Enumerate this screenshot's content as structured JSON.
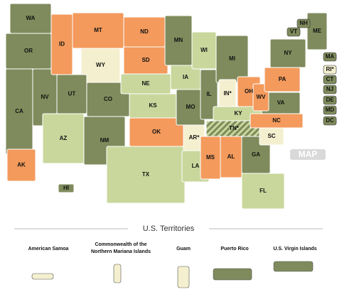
{
  "states": [
    {
      "label": "WA",
      "color": "#7f8b5c"
    },
    {
      "label": "OR",
      "color": "#7f8b5c"
    },
    {
      "label": "CA",
      "color": "#7f8b5c"
    },
    {
      "label": "NV",
      "color": "#7f8b5c"
    },
    {
      "label": "ID",
      "color": "#f39a5c"
    },
    {
      "label": "MT",
      "color": "#f39a5c"
    },
    {
      "label": "WY",
      "color": "#f4efcf"
    },
    {
      "label": "UT",
      "color": "#7f8b5c"
    },
    {
      "label": "CO",
      "color": "#7f8b5c"
    },
    {
      "label": "AZ",
      "color": "#c9d79c"
    },
    {
      "label": "NM",
      "color": "#7f8b5c"
    },
    {
      "label": "ND",
      "color": "#f39a5c"
    },
    {
      "label": "SD",
      "color": "#f39a5c"
    },
    {
      "label": "NE",
      "color": "#c9d79c"
    },
    {
      "label": "KS",
      "color": "#c9d79c"
    },
    {
      "label": "OK",
      "color": "#f39a5c"
    },
    {
      "label": "TX",
      "color": "#c9d79c"
    },
    {
      "label": "MN",
      "color": "#7f8b5c"
    },
    {
      "label": "IA",
      "color": "#c9d79c"
    },
    {
      "label": "MO",
      "color": "#7f8b5c"
    },
    {
      "label": "AR*",
      "color": "#f4efcf"
    },
    {
      "label": "LA",
      "color": "#c9d79c"
    },
    {
      "label": "WI",
      "color": "#c9d79c"
    },
    {
      "label": "IL",
      "color": "#7f8b5c"
    },
    {
      "label": "MI",
      "color": "#7f8b5c"
    },
    {
      "label": "IN*",
      "color": "#f4efcf"
    },
    {
      "label": "OH",
      "color": "#f39a5c"
    },
    {
      "label": "KY",
      "color": "#c9d79c"
    },
    {
      "label": "TN*",
      "color": "#c9d79c",
      "stripe_color": "#7f8b5c"
    },
    {
      "label": "MS",
      "color": "#f39a5c"
    },
    {
      "label": "AL",
      "color": "#f39a5c"
    },
    {
      "label": "GA",
      "color": "#7f8b5c"
    },
    {
      "label": "FL",
      "color": "#c9d79c"
    },
    {
      "label": "SC",
      "color": "#f4efcf"
    },
    {
      "label": "NC",
      "color": "#f39a5c"
    },
    {
      "label": "VA",
      "color": "#7f8b5c"
    },
    {
      "label": "WV",
      "color": "#f39a5c"
    },
    {
      "label": "PA",
      "color": "#f39a5c"
    },
    {
      "label": "NY",
      "color": "#7f8b5c"
    },
    {
      "label": "ME",
      "color": "#7f8b5c"
    },
    {
      "label": "VT",
      "color": "#7f8b5c"
    },
    {
      "label": "NH",
      "color": "#7f8b5c"
    },
    {
      "label": "MA",
      "color": "#7f8b5c"
    },
    {
      "label": "RI*",
      "color": "#f4efcf"
    },
    {
      "label": "CT",
      "color": "#7f8b5c"
    },
    {
      "label": "NJ",
      "color": "#7f8b5c"
    },
    {
      "label": "DE",
      "color": "#7f8b5c"
    },
    {
      "label": "MD",
      "color": "#7f8b5c"
    },
    {
      "label": "DC",
      "color": "#7f8b5c"
    },
    {
      "label": "AK",
      "color": "#f39a5c"
    },
    {
      "label": "HI",
      "color": "#7f8b5c"
    }
  ],
  "territories_title": "U.S. Territories",
  "territories": [
    {
      "lines": [
        "American Samoa"
      ],
      "color": "#f4efcf"
    },
    {
      "lines": [
        "Commonwealth of the",
        "Northern Mariana Islands"
      ],
      "color": "#f4efcf"
    },
    {
      "lines": [
        "Guam"
      ],
      "color": "#f4efcf"
    },
    {
      "lines": [
        "Puerto Rico"
      ],
      "color": "#7f8b5c"
    },
    {
      "lines": [
        "U.S. Virgin Islands"
      ],
      "color": "#7f8b5c"
    }
  ],
  "watermark": "MAP"
}
